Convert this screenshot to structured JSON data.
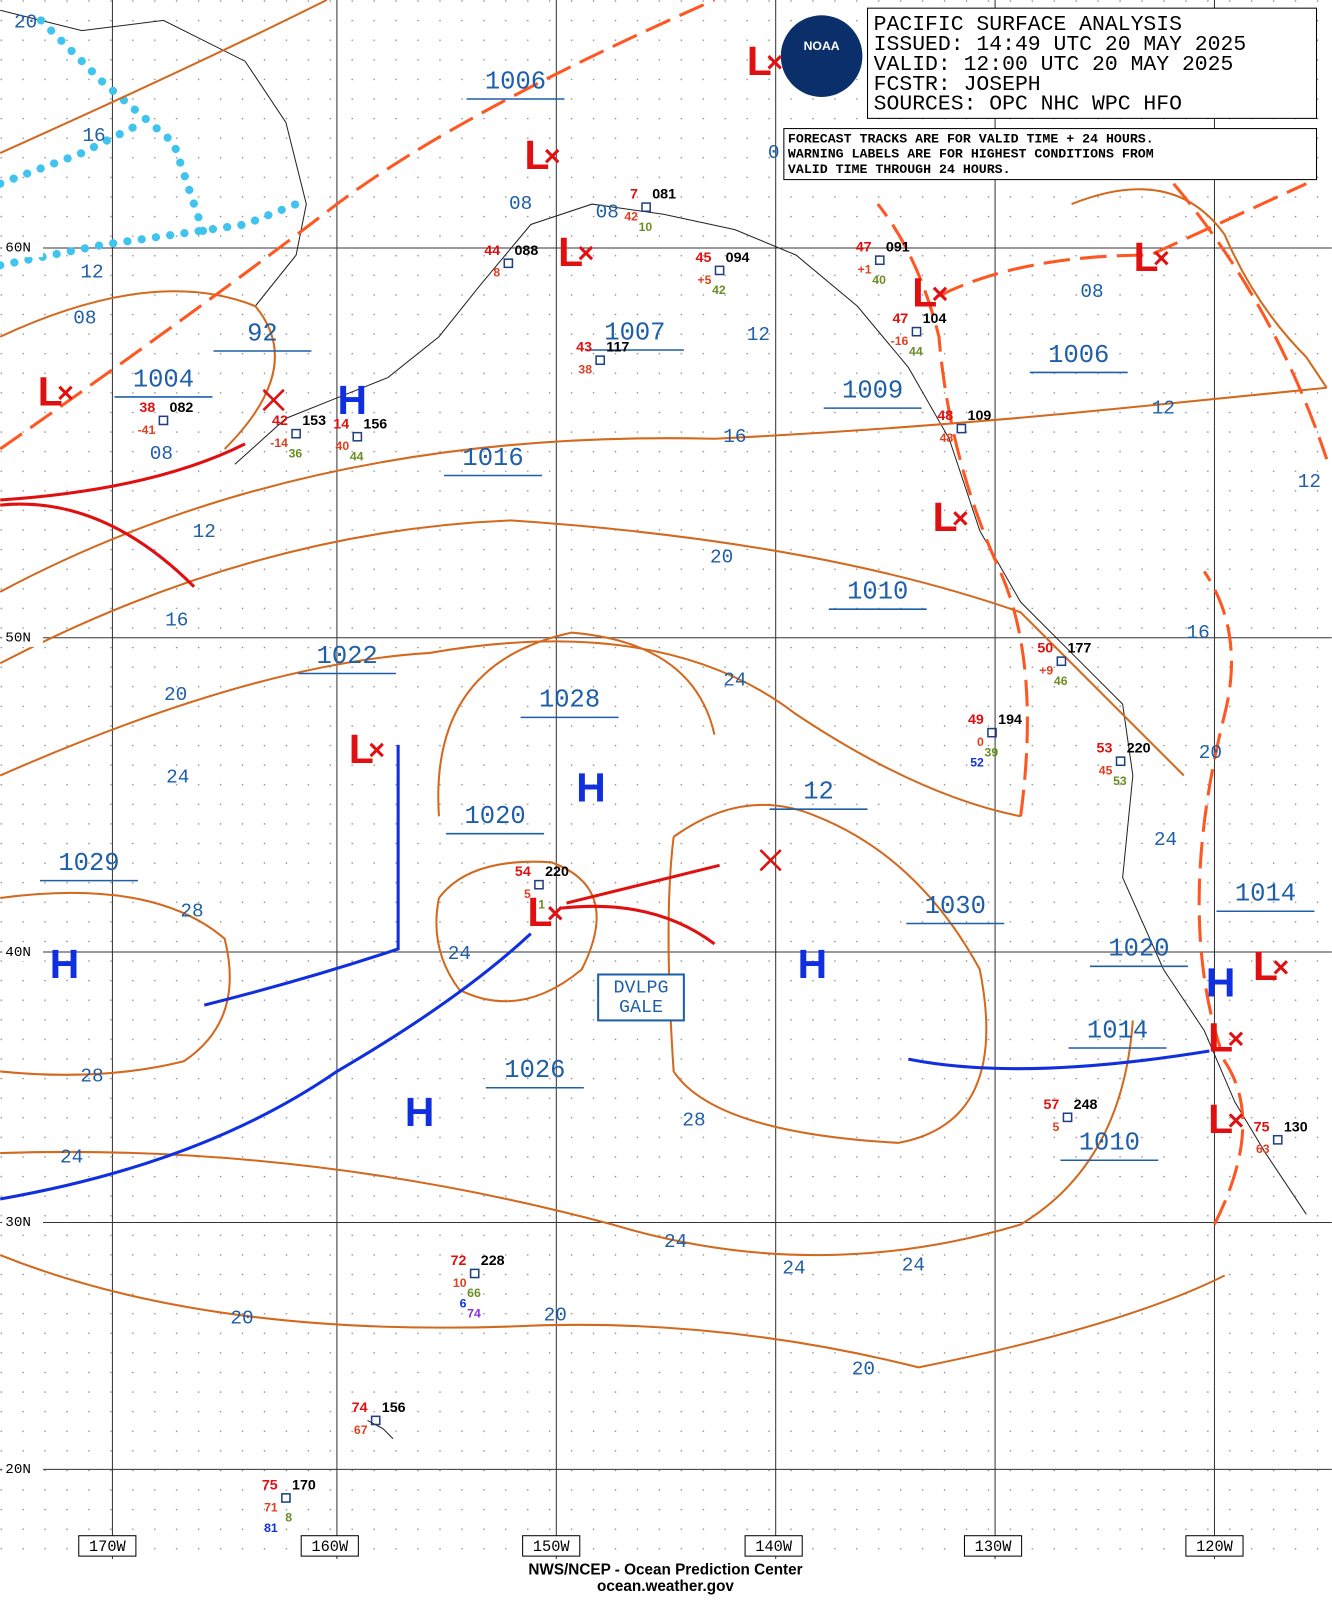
{
  "header": {
    "lines": [
      "PACIFIC SURFACE ANALYSIS",
      "ISSUED: 14:49 UTC 20 MAY 2025",
      "VALID:  12:00 UTC 20 MAY 2025",
      "FCSTR:  JOSEPH",
      "SOURCES: OPC NHC WPC HFO"
    ]
  },
  "notice": [
    "FORECAST TRACKS ARE FOR VALID TIME + 24 HOURS.",
    "WARNING LABELS ARE FOR HIGHEST CONDITIONS FROM",
    "VALID TIME THROUGH 24 HOURS."
  ],
  "logo": "NOAA",
  "footer": [
    "NWS/NCEP - Ocean Prediction Center",
    "ocean.weather.gov"
  ],
  "latitude_labels": [
    "60N",
    "50N",
    "40N",
    "30N",
    "20N"
  ],
  "longitude_labels": [
    "170W",
    "160W",
    "150W",
    "140W",
    "130W",
    "120W"
  ],
  "symbols": {
    "high": "H",
    "low": "L"
  },
  "central_pressures": [
    "1006",
    "1004",
    "92",
    "1007",
    "1016",
    "1009",
    "1006",
    "1010",
    "1022",
    "1028",
    "1020",
    "12",
    "1029",
    "1030",
    "1014",
    "1020",
    "1014",
    "1026",
    "1010"
  ],
  "isobar_labels": [
    "20",
    "16",
    "12",
    "08",
    "0",
    "08",
    "08",
    "08",
    "12",
    "16",
    "20",
    "24",
    "28",
    "28",
    "24",
    "24",
    "12",
    "16",
    "20",
    "24",
    "12",
    "08",
    "12",
    "16",
    "20",
    "24",
    "28",
    "24",
    "24",
    "24",
    "20",
    "20",
    "20"
  ],
  "warning_label": [
    "DVLPG",
    "GALE"
  ],
  "stations": [
    {
      "temperature": "38",
      "pressure": "082",
      "other": [
        "-41"
      ]
    },
    {
      "temperature": "42",
      "pressure": "153",
      "other": [
        "-14",
        "36"
      ]
    },
    {
      "temperature": "14",
      "pressure": "156",
      "other": [
        "40",
        "44"
      ]
    },
    {
      "temperature": "44",
      "pressure": "088",
      "other": [
        "8"
      ]
    },
    {
      "temperature": "7",
      "pressure": "081",
      "other": [
        "42",
        "10"
      ]
    },
    {
      "temperature": "45",
      "pressure": "094",
      "other": [
        "+5",
        "42"
      ]
    },
    {
      "temperature": "43",
      "pressure": "117",
      "other": [
        "38"
      ]
    },
    {
      "temperature": "47",
      "pressure": "091",
      "other": [
        "+1",
        "40"
      ]
    },
    {
      "temperature": "47",
      "pressure": "104",
      "other": [
        "-16",
        "44"
      ]
    },
    {
      "temperature": "48",
      "pressure": "109",
      "other": [
        "48"
      ]
    },
    {
      "temperature": "50",
      "pressure": "177",
      "other": [
        "+9",
        "46"
      ]
    },
    {
      "temperature": "49",
      "pressure": "194",
      "other": [
        "0",
        "39",
        "52"
      ]
    },
    {
      "temperature": "53",
      "pressure": "220",
      "other": [
        "45",
        "53"
      ]
    },
    {
      "temperature": "54",
      "pressure": "220",
      "other": [
        "5",
        "1"
      ]
    },
    {
      "temperature": "57",
      "pressure": "248",
      "other": [
        "5"
      ]
    },
    {
      "temperature": "72",
      "pressure": "228",
      "other": [
        "10",
        "66",
        "6",
        "74"
      ]
    },
    {
      "temperature": "74",
      "pressure": "156",
      "other": [
        "67"
      ]
    },
    {
      "temperature": "75",
      "pressure": "170",
      "other": [
        "71",
        "8",
        "81"
      ]
    },
    {
      "temperature": "75",
      "pressure": "130",
      "other": [
        "63"
      ]
    }
  ]
}
